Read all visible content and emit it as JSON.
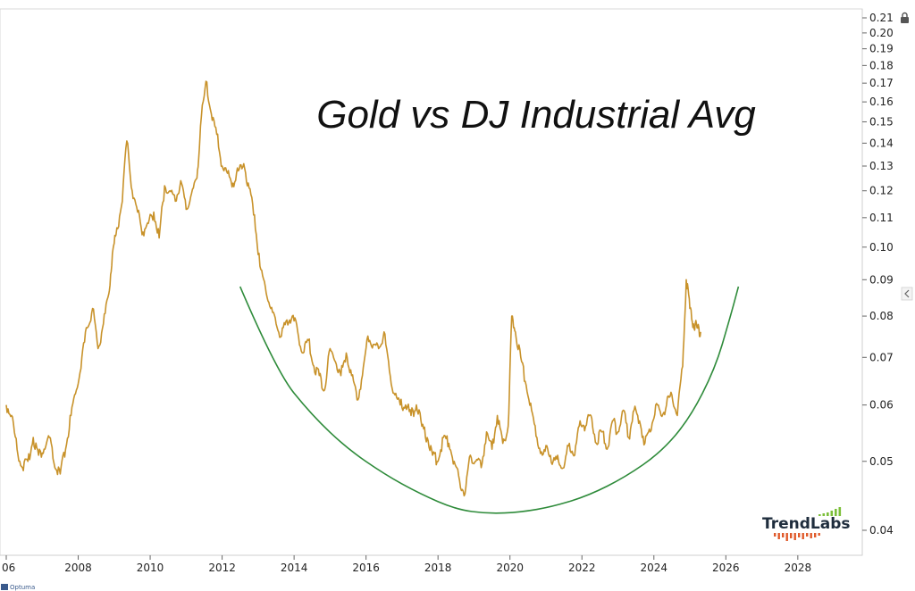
{
  "chart_data": {
    "type": "line",
    "title": "Gold vs DJ Industrial Avg",
    "yscale": "log",
    "ylim": [
      0.037,
      0.215
    ],
    "xlim": [
      2006.0,
      2029.0
    ],
    "yticks": [
      "0.21",
      "0.20",
      "0.19",
      "0.18",
      "0.17",
      "0.16",
      "0.15",
      "0.14",
      "0.13",
      "0.12",
      "0.11",
      "0.10",
      "0.09",
      "0.08",
      "0.07",
      "0.06",
      "0.05",
      "0.04"
    ],
    "xticks": [
      "06",
      "2008",
      "2010",
      "2012",
      "2014",
      "2016",
      "2018",
      "2020",
      "2022",
      "2024",
      "2026",
      "2028"
    ],
    "series": [
      {
        "color": "#c8922a",
        "x": [
          2006.0,
          2006.15,
          2006.3,
          2006.45,
          2006.6,
          2006.75,
          2006.9,
          2007.05,
          2007.2,
          2007.35,
          2007.5,
          2007.65,
          2007.8,
          2007.95,
          2008.1,
          2008.25,
          2008.4,
          2008.55,
          2008.7,
          2008.85,
          2008.95,
          2009.05,
          2009.2,
          2009.35,
          2009.5,
          2009.65,
          2009.8,
          2009.95,
          2010.1,
          2010.25,
          2010.4,
          2010.55,
          2010.7,
          2010.85,
          2011.0,
          2011.15,
          2011.3,
          2011.4,
          2011.55,
          2011.7,
          2011.85,
          2012.0,
          2012.15,
          2012.3,
          2012.45,
          2012.6,
          2012.75,
          2012.9,
          2013.05,
          2013.2,
          2013.35,
          2013.5,
          2013.65,
          2013.8,
          2013.95,
          2014.1,
          2014.25,
          2014.4,
          2014.55,
          2014.7,
          2014.85,
          2015.0,
          2015.15,
          2015.3,
          2015.45,
          2015.6,
          2015.75,
          2015.9,
          2016.05,
          2016.2,
          2016.35,
          2016.5,
          2016.65,
          2016.8,
          2016.95,
          2017.1,
          2017.25,
          2017.4,
          2017.55,
          2017.7,
          2017.85,
          2018.0,
          2018.15,
          2018.3,
          2018.45,
          2018.6,
          2018.75,
          2018.9,
          2019.05,
          2019.2,
          2019.35,
          2019.5,
          2019.65,
          2019.8,
          2019.95,
          2020.05,
          2020.15,
          2020.3,
          2020.45,
          2020.6,
          2020.75,
          2020.9,
          2021.05,
          2021.2,
          2021.35,
          2021.5,
          2021.65,
          2021.8,
          2021.95,
          2022.1,
          2022.25,
          2022.4,
          2022.55,
          2022.7,
          2022.85,
          2023.0,
          2023.15,
          2023.3,
          2023.45,
          2023.6,
          2023.75,
          2023.9,
          2024.05,
          2024.2,
          2024.35,
          2024.5,
          2024.65,
          2024.8,
          2024.9,
          2025.0,
          2025.1,
          2025.2,
          2025.3
        ],
        "y": [
          0.06,
          0.058,
          0.052,
          0.049,
          0.05,
          0.054,
          0.051,
          0.052,
          0.054,
          0.049,
          0.048,
          0.052,
          0.058,
          0.063,
          0.07,
          0.077,
          0.082,
          0.072,
          0.078,
          0.086,
          0.098,
          0.104,
          0.114,
          0.141,
          0.12,
          0.112,
          0.105,
          0.108,
          0.112,
          0.103,
          0.122,
          0.12,
          0.116,
          0.124,
          0.113,
          0.119,
          0.125,
          0.148,
          0.171,
          0.154,
          0.144,
          0.13,
          0.127,
          0.123,
          0.128,
          0.131,
          0.121,
          0.111,
          0.094,
          0.088,
          0.082,
          0.078,
          0.075,
          0.079,
          0.08,
          0.076,
          0.071,
          0.074,
          0.068,
          0.066,
          0.063,
          0.072,
          0.069,
          0.066,
          0.071,
          0.066,
          0.061,
          0.066,
          0.075,
          0.073,
          0.072,
          0.076,
          0.067,
          0.062,
          0.06,
          0.06,
          0.058,
          0.06,
          0.056,
          0.054,
          0.051,
          0.05,
          0.054,
          0.053,
          0.05,
          0.047,
          0.045,
          0.051,
          0.05,
          0.049,
          0.055,
          0.052,
          0.058,
          0.053,
          0.056,
          0.08,
          0.076,
          0.07,
          0.064,
          0.059,
          0.054,
          0.051,
          0.052,
          0.05,
          0.05,
          0.049,
          0.053,
          0.051,
          0.057,
          0.056,
          0.058,
          0.053,
          0.055,
          0.052,
          0.057,
          0.055,
          0.059,
          0.054,
          0.059,
          0.057,
          0.053,
          0.055,
          0.06,
          0.058,
          0.06,
          0.062,
          0.058,
          0.068,
          0.09,
          0.082,
          0.078,
          0.077,
          0.076
        ]
      }
    ],
    "annotations": [
      {
        "type": "arc",
        "color": "#2e8b3a",
        "points": [
          [
            2012.5,
            0.088
          ],
          [
            2013.5,
            0.067
          ],
          [
            2014.5,
            0.058
          ],
          [
            2015.5,
            0.052
          ],
          [
            2016.5,
            0.048
          ],
          [
            2017.5,
            0.045
          ],
          [
            2018.5,
            0.0428
          ],
          [
            2019.4,
            0.0422
          ],
          [
            2020.3,
            0.0424
          ],
          [
            2021.2,
            0.0432
          ],
          [
            2022.2,
            0.0448
          ],
          [
            2023.2,
            0.0475
          ],
          [
            2024.2,
            0.0515
          ],
          [
            2025.0,
            0.0575
          ],
          [
            2025.7,
            0.0675
          ],
          [
            2026.1,
            0.079
          ],
          [
            2026.35,
            0.088
          ]
        ]
      }
    ]
  },
  "branding": {
    "logo_text": "TrendLabs",
    "logo_bar_colors": [
      "#7cbf3a",
      "#e05a2a"
    ],
    "footer_text": "Optuma"
  }
}
